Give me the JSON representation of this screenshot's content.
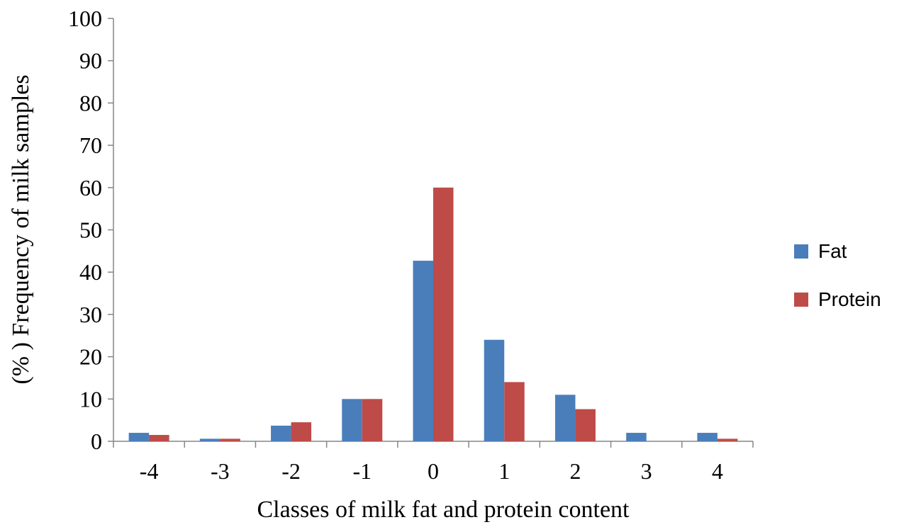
{
  "chart_data": {
    "type": "bar",
    "title": "",
    "xlabel": "Classes of milk fat and protein content",
    "ylabel": "(% ) Frequency of milk samples",
    "categories": [
      "-4",
      "-3",
      "-2",
      "-1",
      "0",
      "1",
      "2",
      "3",
      "4"
    ],
    "series": [
      {
        "name": "Fat",
        "color": "#4A7EBB",
        "values": [
          2,
          0.6,
          3.7,
          10,
          42.7,
          24,
          11,
          2,
          2
        ]
      },
      {
        "name": "Protein",
        "color": "#BE4B48",
        "values": [
          1.5,
          0.6,
          4.5,
          10,
          60,
          14,
          7.6,
          0,
          0.6
        ]
      }
    ],
    "ylim": [
      0,
      100
    ],
    "yticks": [
      "0",
      "10",
      "20",
      "30",
      "40",
      "50",
      "60",
      "70",
      "80",
      "90",
      "100"
    ],
    "grid": false,
    "legend_position": "right"
  }
}
